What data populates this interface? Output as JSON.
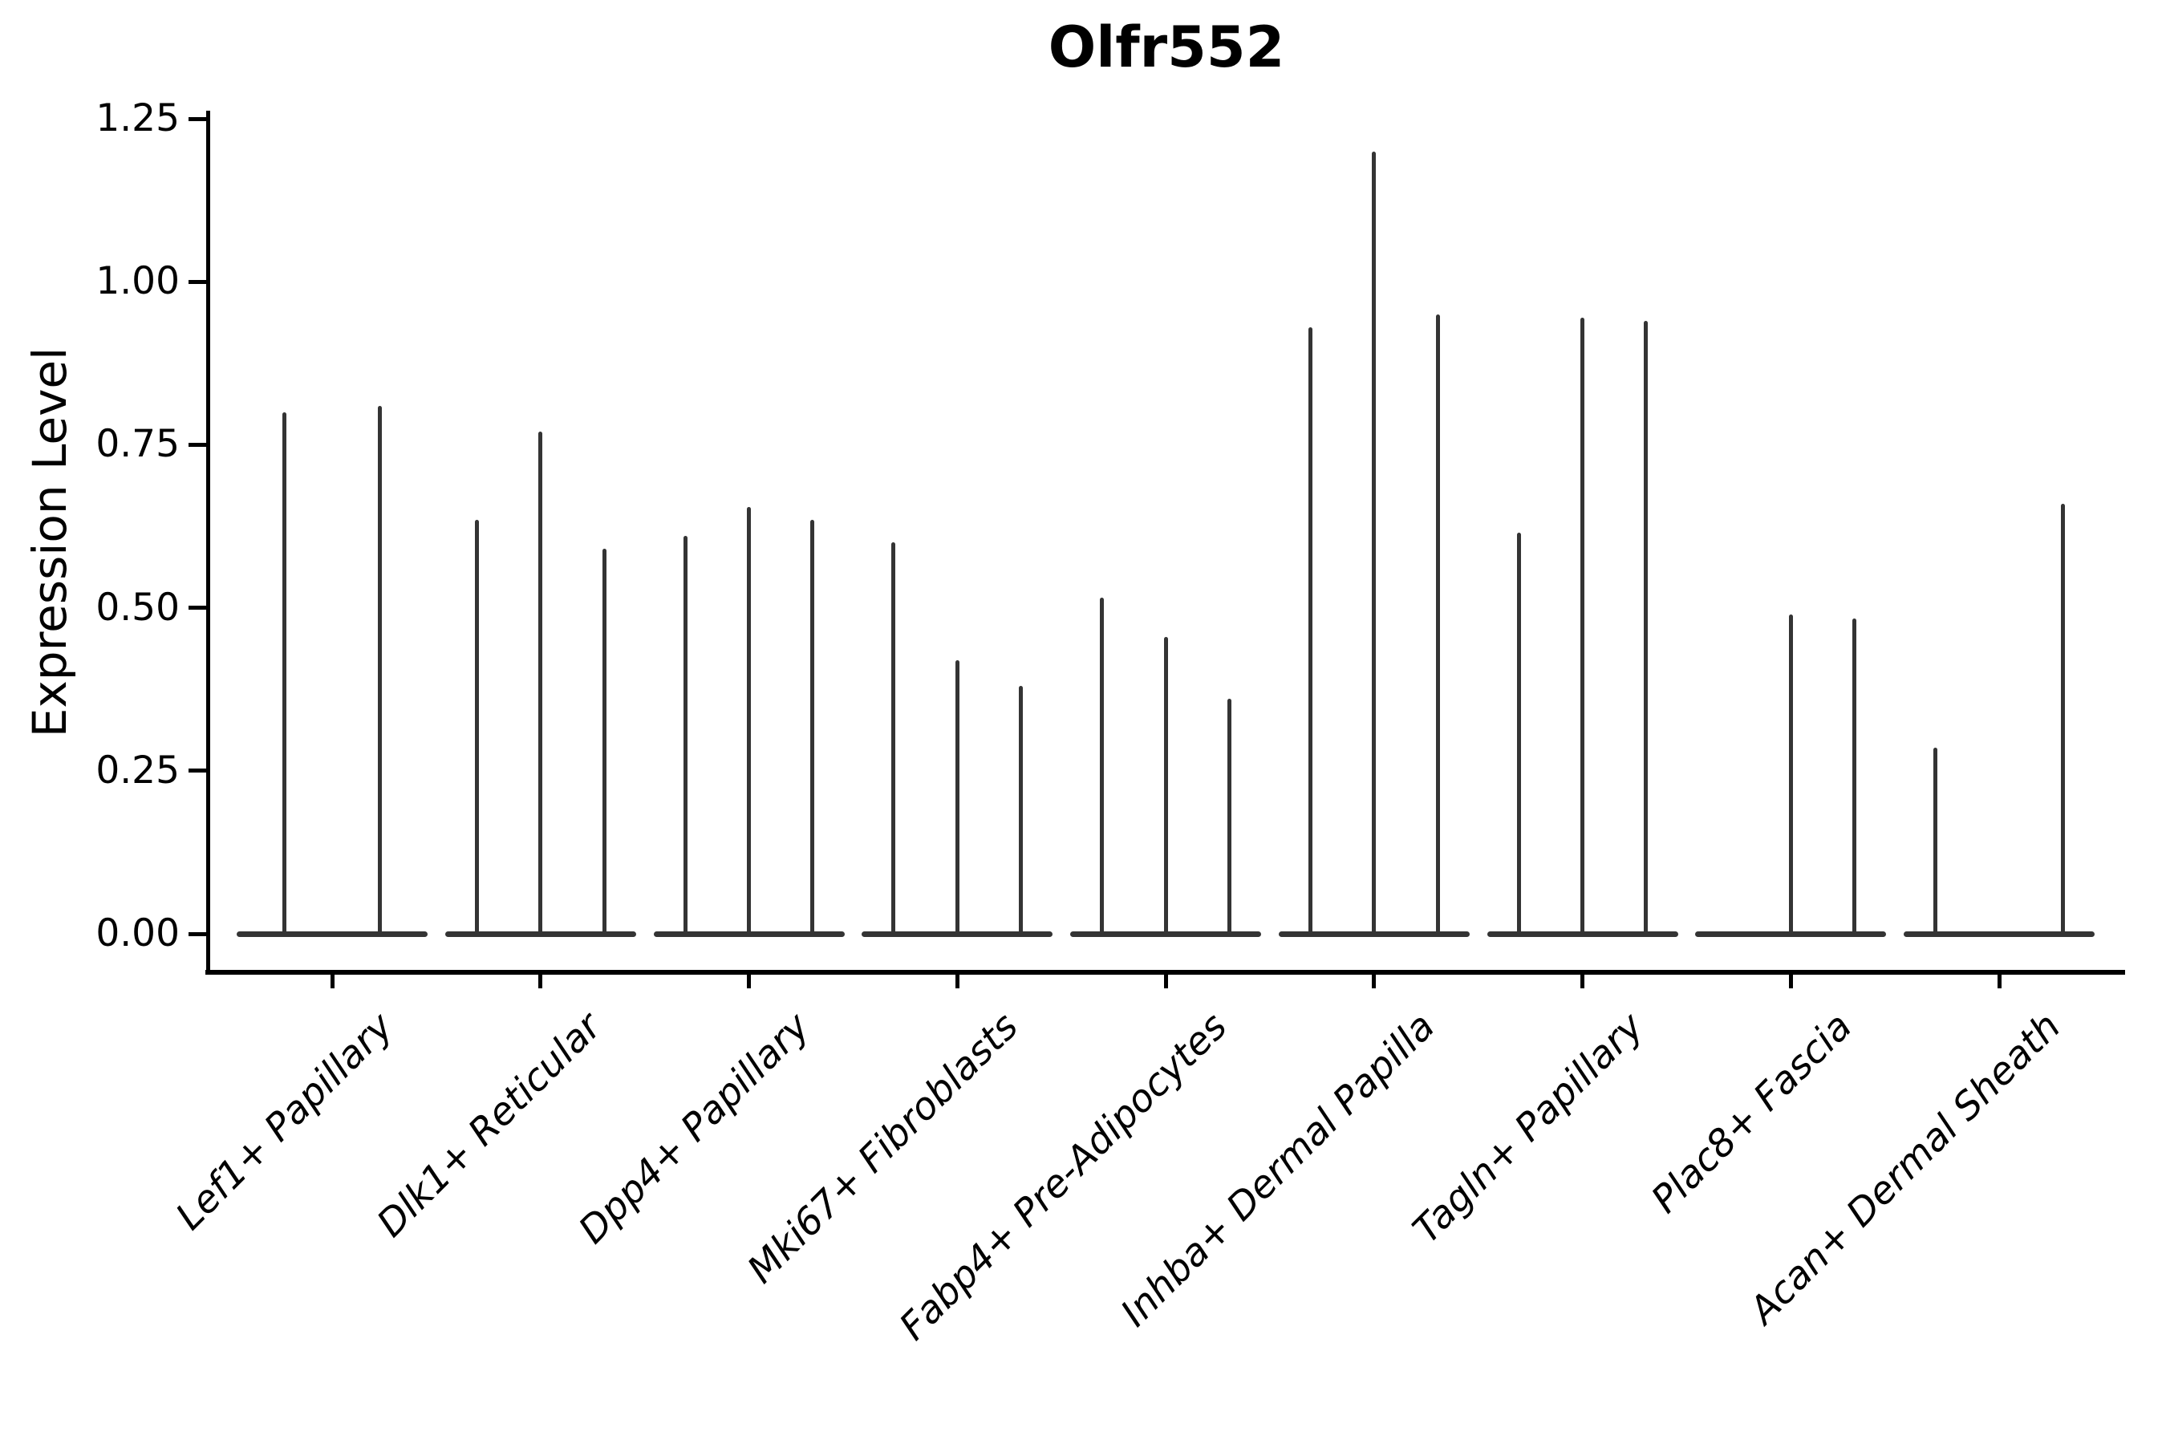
{
  "figure": {
    "title": "Olfr552",
    "background_color": "#ffffff",
    "axis_color": "#000000",
    "violin_color": "#343434"
  },
  "chart_data": {
    "type": "violin",
    "title": "Olfr552",
    "xlabel": "",
    "ylabel": "Expression Level",
    "ylim": [
      0,
      1.25
    ],
    "grid": false,
    "legend_position": "none",
    "yticks": [
      {
        "label": "0.00",
        "value": 0.0
      },
      {
        "label": "0.25",
        "value": 0.25
      },
      {
        "label": "0.50",
        "value": 0.5
      },
      {
        "label": "0.75",
        "value": 0.75
      },
      {
        "label": "1.00",
        "value": 1.0
      },
      {
        "label": "1.25",
        "value": 1.25
      }
    ],
    "categories": [
      "Lef1+ Papillary",
      "Dlk1+ Reticular",
      "Dpp4+ Papillary",
      "Mki67+ Fibroblasts",
      "Fabp4+ Pre-Adipocytes",
      "Inhba+ Dermal Papilla",
      "Tagln+ Papillary",
      "Plac8+ Fascia",
      "Acan+ Dermal Sheath"
    ],
    "groups": [
      {
        "label": "Lef1+ Papillary",
        "violin_max_expression": [
          0.8,
          0.81
        ]
      },
      {
        "label": "Dlk1+ Reticular",
        "violin_max_expression": [
          0.635,
          0.77,
          0.59
        ]
      },
      {
        "label": "Dpp4+ Papillary",
        "violin_max_expression": [
          0.61,
          0.655,
          0.635
        ]
      },
      {
        "label": "Mki67+ Fibroblasts",
        "violin_max_expression": [
          0.6,
          0.42,
          0.38
        ]
      },
      {
        "label": "Fabp4+ Pre-Adipocytes",
        "violin_max_expression": [
          0.515,
          0.455,
          0.36
        ]
      },
      {
        "label": "Inhba+ Dermal Papilla",
        "violin_max_expression": [
          0.93,
          1.2,
          0.95
        ]
      },
      {
        "label": "Tagln+ Papillary",
        "violin_max_expression": [
          0.615,
          0.945,
          0.94
        ]
      },
      {
        "label": "Plac8+ Fascia",
        "violin_max_expression": [
          null,
          0.49,
          0.483
        ]
      },
      {
        "label": "Acan+ Dermal Sheath",
        "violin_max_expression": [
          0.285,
          null,
          0.66
        ]
      }
    ]
  }
}
